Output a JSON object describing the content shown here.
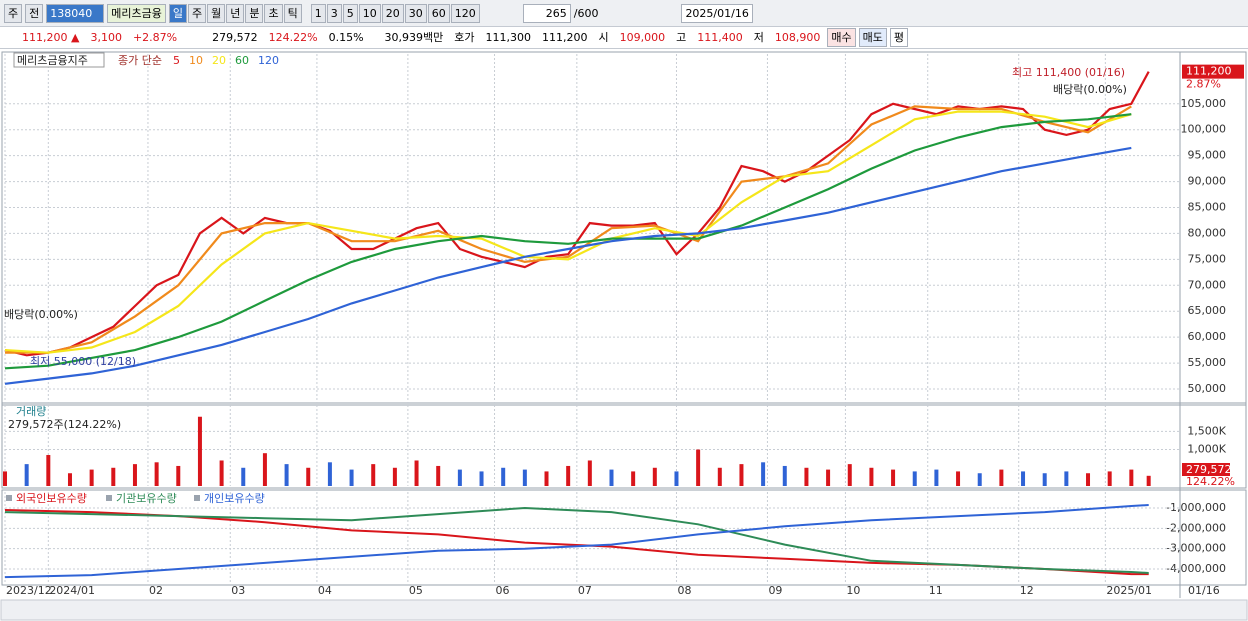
{
  "toolbar": {
    "market": "주",
    "scope": "전",
    "code": "138040",
    "name": "메리츠금융",
    "periods": [
      "일",
      "주",
      "월",
      "년",
      "분",
      "초",
      "틱"
    ],
    "intervals": [
      "1",
      "3",
      "5",
      "10",
      "20",
      "30",
      "60",
      "120"
    ],
    "count": "265",
    "max": "/600",
    "date": "2025/01/16"
  },
  "quote": {
    "price": "111,200 ▲",
    "change": "3,100",
    "rate": "+2.87%",
    "volume": "279,572",
    "vol_ratio": "124.22%",
    "turnover": "0.15%",
    "amount": "30,939백만",
    "ask_label": "호가",
    "ask": "111,300",
    "bid": "111,200",
    "open_label": "시",
    "open": "109,000",
    "high_label": "고",
    "high": "111,400",
    "low_label": "저",
    "low": "108,900",
    "buy": "매수",
    "sell": "매도",
    "avg": "평"
  },
  "chart_data": [
    {
      "type": "line",
      "title": "메리츠금융지주",
      "subtitle": "종가 단순",
      "xlim": [
        0,
        265
      ],
      "ylim": [
        47300,
        114600
      ],
      "grid": true,
      "yticks": [
        {
          "value": 50000,
          "label": "50,000"
        },
        {
          "value": 55000,
          "label": "55,000"
        },
        {
          "value": 60000,
          "label": "60,000"
        },
        {
          "value": 65000,
          "label": "65,000"
        },
        {
          "value": 70000,
          "label": "70,000"
        },
        {
          "value": 75000,
          "label": "75,000"
        },
        {
          "value": 80000,
          "label": "80,000"
        },
        {
          "value": 85000,
          "label": "85,000"
        },
        {
          "value": 90000,
          "label": "90,000"
        },
        {
          "value": 95000,
          "label": "95,000"
        },
        {
          "value": 100000,
          "label": "100,000"
        },
        {
          "value": 105000,
          "label": "105,000"
        }
      ],
      "series": [
        {
          "name": "5",
          "color": "#d9151b",
          "x": [
            0,
            5,
            10,
            15,
            20,
            25,
            30,
            35,
            40,
            45,
            50,
            55,
            60,
            65,
            70,
            75,
            80,
            85,
            90,
            95,
            100,
            105,
            110,
            115,
            120,
            125,
            130,
            135,
            140,
            145,
            150,
            155,
            160,
            165,
            170,
            175,
            180,
            185,
            190,
            195,
            200,
            205,
            210,
            215,
            220,
            225,
            230,
            235,
            240,
            245,
            250,
            255,
            260,
            264
          ],
          "values": [
            57500,
            56500,
            57000,
            58000,
            60000,
            62000,
            66000,
            70000,
            72000,
            80000,
            83000,
            80000,
            83000,
            82000,
            82000,
            80500,
            77000,
            77000,
            79000,
            81000,
            82000,
            77000,
            75500,
            74500,
            73500,
            75500,
            76000,
            82000,
            81500,
            81500,
            82000,
            76000,
            80000,
            85000,
            93000,
            92000,
            90000,
            92000,
            95000,
            98000,
            103000,
            105000,
            104000,
            103000,
            104500,
            104000,
            104500,
            104000,
            100000,
            99000,
            100000,
            104000,
            105000,
            111200
          ]
        },
        {
          "name": "10",
          "color": "#f08a1c",
          "x": [
            0,
            10,
            20,
            30,
            40,
            50,
            60,
            70,
            80,
            90,
            100,
            110,
            120,
            130,
            140,
            150,
            160,
            170,
            180,
            190,
            200,
            210,
            220,
            230,
            240,
            250,
            260
          ],
          "values": [
            57000,
            57000,
            59000,
            64000,
            70000,
            80000,
            82000,
            82000,
            78500,
            78500,
            80500,
            77000,
            74500,
            75500,
            81000,
            81500,
            78500,
            90000,
            91000,
            93500,
            101000,
            104500,
            104000,
            104000,
            101500,
            99500,
            104500
          ]
        },
        {
          "name": "20",
          "color": "#f5e61a",
          "x": [
            0,
            10,
            20,
            30,
            40,
            50,
            60,
            70,
            80,
            90,
            100,
            110,
            120,
            130,
            140,
            150,
            160,
            170,
            180,
            190,
            200,
            210,
            220,
            230,
            240,
            250,
            260
          ],
          "values": [
            57500,
            57000,
            58000,
            61000,
            66000,
            74000,
            80000,
            82000,
            80500,
            79000,
            79500,
            79000,
            75500,
            75000,
            79000,
            81000,
            79500,
            86000,
            91000,
            92000,
            97000,
            102000,
            103500,
            103500,
            102500,
            100500,
            103000
          ]
        },
        {
          "name": "60",
          "color": "#1e9a3c",
          "x": [
            0,
            10,
            20,
            30,
            40,
            50,
            60,
            70,
            80,
            90,
            100,
            110,
            120,
            130,
            140,
            150,
            160,
            170,
            180,
            190,
            200,
            210,
            220,
            230,
            240,
            250,
            260
          ],
          "values": [
            54000,
            54500,
            56000,
            57500,
            60000,
            63000,
            67000,
            71000,
            74500,
            77000,
            78500,
            79500,
            78500,
            78000,
            79000,
            79000,
            79000,
            81500,
            85000,
            88500,
            92500,
            96000,
            98500,
            100500,
            101500,
            102000,
            103000
          ]
        },
        {
          "name": "120",
          "color": "#2f63d6",
          "x": [
            0,
            10,
            20,
            30,
            40,
            50,
            60,
            70,
            80,
            90,
            100,
            110,
            120,
            130,
            140,
            150,
            160,
            170,
            180,
            190,
            200,
            210,
            220,
            230,
            240,
            250,
            260
          ],
          "values": [
            51000,
            52000,
            53000,
            54500,
            56500,
            58500,
            61000,
            63500,
            66500,
            69000,
            71500,
            73500,
            75500,
            77000,
            78500,
            79500,
            80000,
            81000,
            82500,
            84000,
            86000,
            88000,
            90000,
            92000,
            93500,
            95000,
            96500
          ]
        }
      ],
      "annotations": [
        "최고 111,400 (01/16)",
        "최저 55,000 (12/18)",
        "배당락(0.00%)",
        "배당락(0.00%)"
      ],
      "last_price": {
        "value": 111200,
        "label": "111,200"
      },
      "last_rate": "2.87%"
    },
    {
      "type": "bar",
      "title": "거래량",
      "subtitle": "279,572주(124.22%)",
      "xlim": [
        0,
        265
      ],
      "ylim": [
        0,
        2222000
      ],
      "grid": true,
      "yticks": [
        {
          "value": 1000000,
          "label": "1,000K"
        },
        {
          "value": 1500000,
          "label": "1,500K"
        }
      ],
      "x": [
        0,
        5,
        10,
        15,
        20,
        25,
        30,
        35,
        40,
        45,
        50,
        55,
        60,
        65,
        70,
        75,
        80,
        85,
        90,
        95,
        100,
        105,
        110,
        115,
        120,
        125,
        130,
        135,
        140,
        145,
        150,
        155,
        160,
        165,
        170,
        175,
        180,
        185,
        190,
        195,
        200,
        205,
        210,
        215,
        220,
        225,
        230,
        235,
        240,
        245,
        250,
        255,
        260,
        264
      ],
      "values": [
        400000,
        600000,
        850000,
        350000,
        450000,
        500000,
        600000,
        650000,
        550000,
        1900000,
        700000,
        500000,
        900000,
        600000,
        500000,
        650000,
        450000,
        600000,
        500000,
        700000,
        550000,
        450000,
        400000,
        500000,
        450000,
        400000,
        550000,
        700000,
        450000,
        400000,
        500000,
        400000,
        1000000,
        500000,
        600000,
        650000,
        550000,
        500000,
        450000,
        600000,
        500000,
        450000,
        400000,
        450000,
        400000,
        350000,
        450000,
        400000,
        350000,
        400000,
        350000,
        400000,
        450000,
        279572
      ],
      "up_color": "#d9151b",
      "down_color": "#2f63d6",
      "last_labels": [
        "279,572",
        "124.22%"
      ]
    },
    {
      "type": "line",
      "xlim": [
        0,
        265
      ],
      "ylim": [
        -4690000,
        -212000
      ],
      "grid": true,
      "yticks": [
        {
          "value": -1000000,
          "label": "-1,000,000"
        },
        {
          "value": -2000000,
          "label": "-2,000,000"
        },
        {
          "value": -3000000,
          "label": "-3,000,000"
        },
        {
          "value": -4000000,
          "label": "-4,000,000"
        }
      ],
      "xticks": [
        {
          "value": 0,
          "label": "2023/12"
        },
        {
          "value": 10,
          "label": "2024/01"
        },
        {
          "value": 33,
          "label": "02"
        },
        {
          "value": 52,
          "label": "03"
        },
        {
          "value": 72,
          "label": "04"
        },
        {
          "value": 93,
          "label": "05"
        },
        {
          "value": 113,
          "label": "06"
        },
        {
          "value": 132,
          "label": "07"
        },
        {
          "value": 155,
          "label": "08"
        },
        {
          "value": 176,
          "label": "09"
        },
        {
          "value": 194,
          "label": "10"
        },
        {
          "value": 213,
          "label": "11"
        },
        {
          "value": 234,
          "label": "12"
        },
        {
          "value": 254,
          "label": "2025/01"
        }
      ],
      "cursor_label": "01/16",
      "series": [
        {
          "name": "외국인보유수량",
          "color": "#d9151b",
          "x": [
            0,
            20,
            40,
            60,
            80,
            100,
            120,
            140,
            160,
            180,
            200,
            220,
            240,
            260,
            264
          ],
          "values": [
            -1100000,
            -1200000,
            -1400000,
            -1700000,
            -2100000,
            -2300000,
            -2700000,
            -2900000,
            -3300000,
            -3500000,
            -3700000,
            -3800000,
            -4000000,
            -4250000,
            -4250000
          ]
        },
        {
          "name": "기관보유수량",
          "color": "#2e8b57",
          "x": [
            0,
            20,
            40,
            60,
            80,
            100,
            120,
            140,
            160,
            180,
            200,
            220,
            240,
            260,
            264
          ],
          "values": [
            -1200000,
            -1300000,
            -1400000,
            -1500000,
            -1600000,
            -1300000,
            -1000000,
            -1200000,
            -1800000,
            -2800000,
            -3600000,
            -3800000,
            -4000000,
            -4150000,
            -4200000
          ]
        },
        {
          "name": "개인보유수량",
          "color": "#2f63d6",
          "x": [
            0,
            20,
            40,
            60,
            80,
            100,
            120,
            140,
            160,
            180,
            200,
            220,
            240,
            260,
            264
          ],
          "values": [
            -4400000,
            -4300000,
            -4000000,
            -3700000,
            -3400000,
            -3100000,
            -3000000,
            -2800000,
            -2300000,
            -1900000,
            -1600000,
            -1400000,
            -1200000,
            -900000,
            -850000
          ]
        }
      ]
    }
  ]
}
